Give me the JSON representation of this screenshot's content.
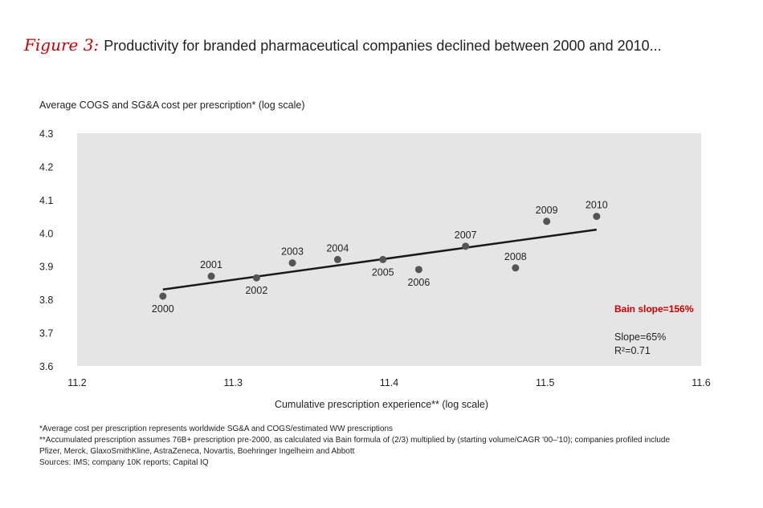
{
  "figure": {
    "label": "Figure 3:",
    "title": "Productivity for branded pharmaceutical companies declined between 2000 and 2010..."
  },
  "colors": {
    "accent": "#cc0000",
    "plot_bg": "#e5e5e5",
    "point": "#555555",
    "line": "#1a1a1a"
  },
  "chart_data": {
    "type": "scatter",
    "title": "",
    "xlabel": "Cumulative prescription experience** (log scale)",
    "ylabel": "Average COGS and SG&A cost per prescription* (log scale)",
    "xlim": [
      11.2,
      11.6
    ],
    "ylim": [
      3.6,
      4.3
    ],
    "xticks": [
      "11.2",
      "11.3",
      "11.4",
      "11.5",
      "11.6"
    ],
    "yticks": [
      "3.6",
      "3.7",
      "3.8",
      "3.9",
      "4.0",
      "4.1",
      "4.2",
      "4.3"
    ],
    "points": [
      {
        "label": "2000",
        "x": 11.255,
        "y": 3.81,
        "pos": "below"
      },
      {
        "label": "2001",
        "x": 11.286,
        "y": 3.87,
        "pos": "above"
      },
      {
        "label": "2002",
        "x": 11.315,
        "y": 3.865,
        "pos": "below"
      },
      {
        "label": "2003",
        "x": 11.338,
        "y": 3.91,
        "pos": "above"
      },
      {
        "label": "2004",
        "x": 11.367,
        "y": 3.92,
        "pos": "above"
      },
      {
        "label": "2005",
        "x": 11.396,
        "y": 3.92,
        "pos": "below"
      },
      {
        "label": "2006",
        "x": 11.419,
        "y": 3.89,
        "pos": "below"
      },
      {
        "label": "2007",
        "x": 11.449,
        "y": 3.96,
        "pos": "above"
      },
      {
        "label": "2008",
        "x": 11.481,
        "y": 3.895,
        "pos": "above"
      },
      {
        "label": "2009",
        "x": 11.501,
        "y": 4.035,
        "pos": "above"
      },
      {
        "label": "2010",
        "x": 11.533,
        "y": 4.05,
        "pos": "above"
      }
    ],
    "trendline": {
      "x": [
        11.255,
        11.533
      ],
      "y": [
        3.83,
        4.01
      ]
    },
    "annotations": {
      "bain_slope": "Bain slope=156%",
      "slope": "Slope=65%",
      "r2": "R²=0.71"
    },
    "grid": false
  },
  "footnotes": [
    "*Average cost per prescription represents worldwide SG&A and COGS/estimated WW prescriptions",
    "**Accumulated prescription assumes 76B+ prescription pre-2000, as calculated via Bain formula of (2/3) multiplied by (starting volume/CAGR '00–'10); companies profiled include",
    "Pfizer, Merck, GlaxoSmithKline, AstraZeneca, Novartis, Boehringer Ingelheim and Abbott",
    "Sources: IMS; company 10K reports; Capital IQ"
  ]
}
